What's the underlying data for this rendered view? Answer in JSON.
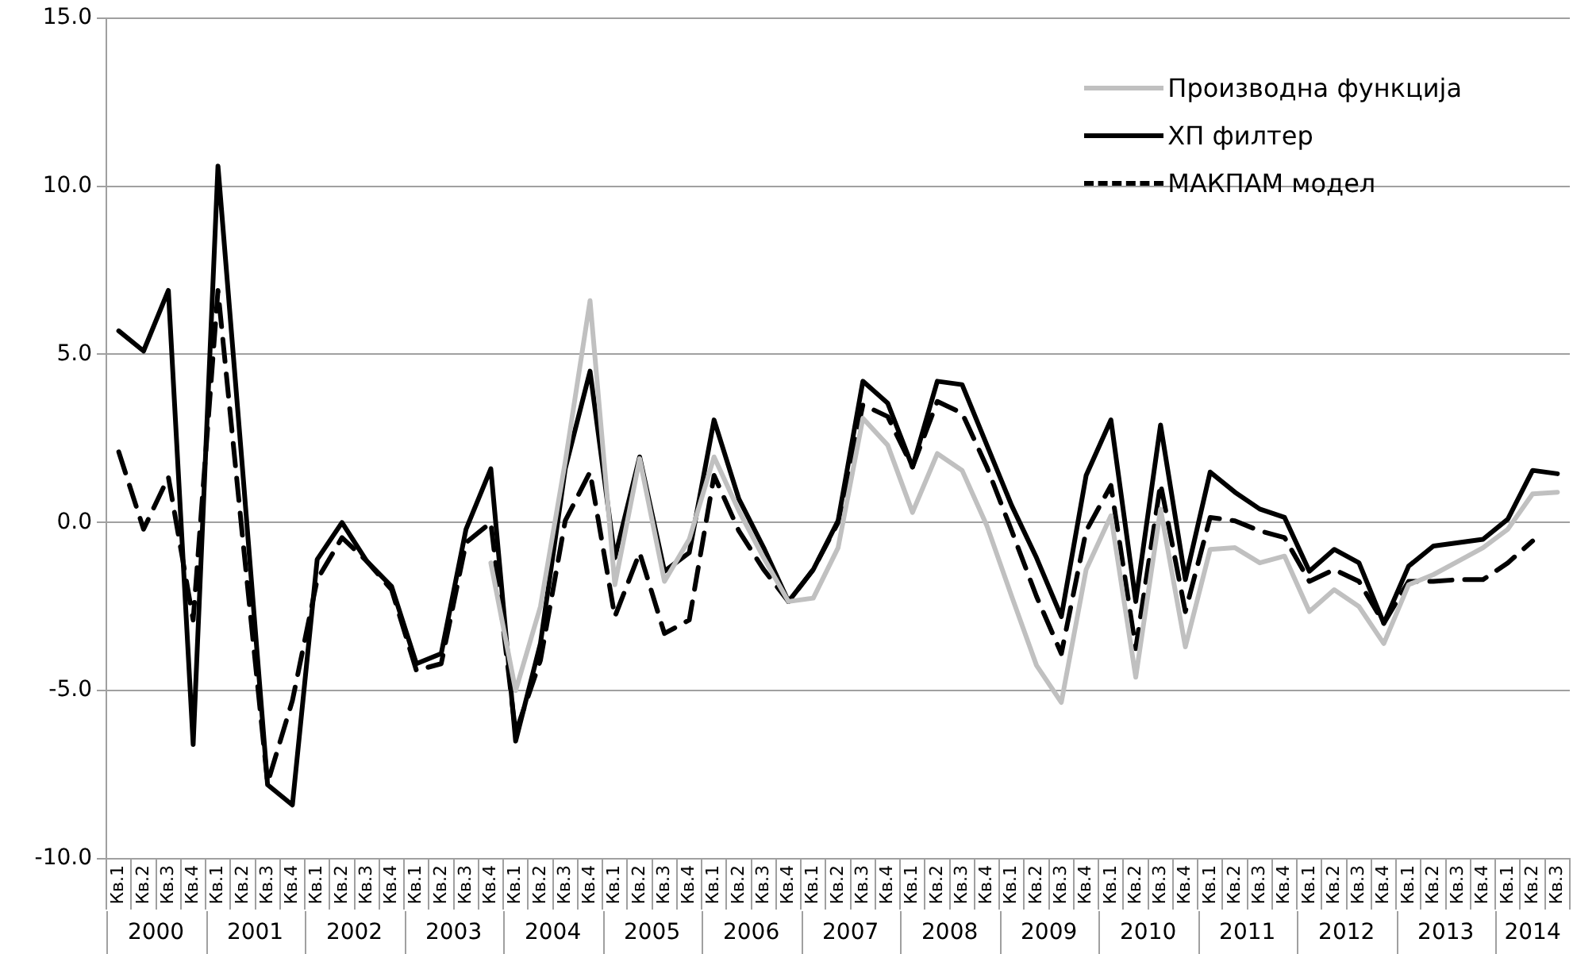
{
  "chart_data": {
    "type": "line",
    "categories": [
      "Кв.1",
      "Кв.2",
      "Кв.3",
      "Кв.4",
      "Кв.1",
      "Кв.2",
      "Кв.3",
      "Кв.4",
      "Кв.1",
      "Кв.2",
      "Кв.3",
      "Кв.4",
      "Кв.1",
      "Кв.2",
      "Кв.3",
      "Кв.4",
      "Кв.1",
      "Кв.2",
      "Кв.3",
      "Кв.4",
      "Кв.1",
      "Кв.2",
      "Кв.3",
      "Кв.4",
      "Кв.1",
      "Кв.2",
      "Кв.3",
      "Кв.4",
      "Кв.1",
      "Кв.2",
      "Кв.3",
      "Кв.4",
      "Кв.1",
      "Кв.2",
      "Кв.3",
      "Кв.4",
      "Кв.1",
      "Кв.2",
      "Кв.3",
      "Кв.4",
      "Кв.1",
      "Кв.2",
      "Кв.3",
      "Кв.4",
      "Кв.1",
      "Кв.2",
      "Кв.3",
      "Кв.4",
      "Кв.1",
      "Кв.2",
      "Кв.3",
      "Кв.4",
      "Кв.1",
      "Кв.2",
      "Кв.3",
      "Кв.4",
      "Кв.1",
      "Кв.2",
      "Кв.3"
    ],
    "series": [
      {
        "name": "Производна функција",
        "color": "#c0c0c0",
        "line_style": "solid",
        "values": [
          null,
          null,
          null,
          null,
          null,
          null,
          null,
          null,
          null,
          null,
          null,
          null,
          null,
          null,
          null,
          -1.2,
          -5.0,
          -2.5,
          1.8,
          6.6,
          -1.85,
          1.9,
          -1.75,
          -0.5,
          1.95,
          0.35,
          -1.05,
          -2.35,
          -2.25,
          -0.75,
          3.1,
          2.3,
          0.3,
          2.05,
          1.55,
          -0.1,
          -2.2,
          -4.25,
          -5.35,
          -1.4,
          0.2,
          -4.6,
          0.4,
          -3.7,
          -0.8,
          -0.75,
          -1.2,
          -1.0,
          -2.65,
          -2.0,
          -2.5,
          -3.6,
          -1.85,
          -1.55,
          -1.15,
          -0.75,
          -0.2,
          0.85,
          0.9
        ]
      },
      {
        "name": "ХП филтер",
        "color": "#000000",
        "line_style": "solid",
        "values": [
          5.7,
          5.1,
          6.9,
          -6.6,
          10.6,
          1.5,
          -7.8,
          -8.4,
          -1.1,
          0.0,
          -1.15,
          -1.9,
          -4.2,
          -3.9,
          -0.2,
          1.6,
          -6.5,
          -3.6,
          1.6,
          4.5,
          -1.05,
          1.95,
          -1.45,
          -0.9,
          3.05,
          0.7,
          -0.75,
          -2.35,
          -1.4,
          0.05,
          4.2,
          3.55,
          1.65,
          4.2,
          4.1,
          2.3,
          0.5,
          -1.05,
          -2.8,
          1.4,
          3.05,
          -2.35,
          2.9,
          -1.7,
          1.5,
          0.9,
          0.4,
          0.15,
          -1.45,
          -0.8,
          -1.2,
          -3.0,
          -1.3,
          -0.7,
          -0.6,
          -0.5,
          0.1,
          1.55,
          1.45
        ]
      },
      {
        "name": "МАКПАМ модел",
        "color": "#000000",
        "line_style": "dashed",
        "values": [
          2.1,
          -0.2,
          1.35,
          -2.9,
          6.9,
          -0.5,
          -7.75,
          -5.3,
          -1.7,
          -0.45,
          -1.15,
          -2.0,
          -4.4,
          -4.2,
          -0.6,
          0.0,
          -6.25,
          -4.1,
          0.05,
          1.5,
          -2.8,
          -0.9,
          -3.3,
          -2.9,
          1.4,
          -0.25,
          -1.4,
          -2.35,
          -1.4,
          0.0,
          3.5,
          3.15,
          1.65,
          3.6,
          3.25,
          1.65,
          -0.25,
          -2.2,
          -3.9,
          -0.25,
          1.1,
          -3.75,
          1.15,
          -2.65,
          0.15,
          0.05,
          -0.25,
          -0.45,
          -1.75,
          -1.4,
          -1.75,
          -3.0,
          -1.75,
          -1.75,
          -1.7,
          -1.7,
          -1.2,
          -0.55,
          null
        ]
      }
    ],
    "ylim": [
      -10,
      15
    ],
    "yticks": [
      {
        "value": -10,
        "label": "-10.0"
      },
      {
        "value": -5,
        "label": "-5.0"
      },
      {
        "value": 0,
        "label": "0.0"
      },
      {
        "value": 5,
        "label": "5.0"
      },
      {
        "value": 10,
        "label": "10.0"
      },
      {
        "value": 15,
        "label": "15.0"
      }
    ],
    "grid": "y",
    "legend": "top right",
    "marker": "none",
    "annotations": [
      "2000",
      "2001",
      "2002",
      "2003",
      "2004",
      "2005",
      "2006",
      "2007",
      "2008",
      "2009",
      "2010",
      "2011",
      "2012",
      "2013",
      "2014"
    ]
  }
}
